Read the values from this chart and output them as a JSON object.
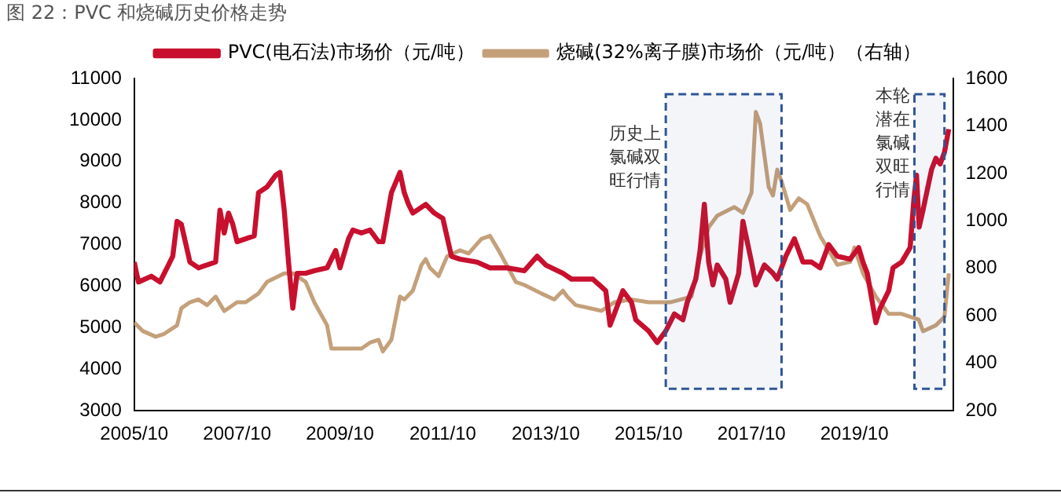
{
  "chart_data": {
    "type": "line",
    "title": "图 22：PVC 和烧碱历史价格走势",
    "xlim": [
      "2005-10",
      "2021-09"
    ],
    "xticks": [
      {
        "value": "2005-10",
        "label": "2005/10"
      },
      {
        "value": "2007-10",
        "label": "2007/10"
      },
      {
        "value": "2009-10",
        "label": "2009/10"
      },
      {
        "value": "2011-10",
        "label": "2011/10"
      },
      {
        "value": "2013-10",
        "label": "2013/10"
      },
      {
        "value": "2015-10",
        "label": "2015/10"
      },
      {
        "value": "2017-10",
        "label": "2017/10"
      },
      {
        "value": "2019-10",
        "label": "2019/10"
      }
    ],
    "ylim": [
      3000,
      11000
    ],
    "yticks": [
      3000,
      4000,
      5000,
      6000,
      7000,
      8000,
      9000,
      10000,
      11000
    ],
    "y2lim": [
      200,
      1600
    ],
    "y2ticks": [
      200,
      400,
      600,
      800,
      1000,
      1200,
      1400,
      1600
    ],
    "grid": false,
    "legend": "top",
    "marker": "none",
    "line_style": "solid",
    "bands": [
      {
        "axis": "x",
        "from": "2016-02",
        "to": "2018-05",
        "label": "历史上氯碱双旺行情",
        "color": "#2f5597"
      },
      {
        "axis": "x",
        "from": "2020-12",
        "to": "2021-07",
        "label": "本轮潜在氯碱双旺行情",
        "color": "#2f5597"
      }
    ],
    "series": [
      {
        "name": "PVC(电石法)市场价（元/吨）",
        "color": "#c8102e",
        "x": [
          "2005-10",
          "2005-11",
          "2006-02",
          "2006-04",
          "2006-06",
          "2006-07",
          "2006-08",
          "2006-09",
          "2006-11",
          "2007-01",
          "2007-03",
          "2007-05",
          "2007-06",
          "2007-07",
          "2007-08",
          "2007-09",
          "2007-10",
          "2008-02",
          "2008-03",
          "2008-05",
          "2008-07",
          "2008-08",
          "2008-09",
          "2008-10",
          "2008-11",
          "2008-12",
          "2009-02",
          "2009-04",
          "2009-07",
          "2009-09",
          "2009-10",
          "2009-12",
          "2010-01",
          "2010-03",
          "2010-05",
          "2010-07",
          "2010-08",
          "2010-10",
          "2010-12",
          "2011-01",
          "2011-02",
          "2011-03",
          "2011-06",
          "2011-08",
          "2011-10",
          "2011-12",
          "2012-02",
          "2012-06",
          "2012-09",
          "2013-01",
          "2013-05",
          "2013-08",
          "2013-10",
          "2014-02",
          "2014-04",
          "2014-09",
          "2014-12",
          "2015-01",
          "2015-02",
          "2015-04",
          "2015-06",
          "2015-07",
          "2015-10",
          "2015-12",
          "2016-02",
          "2016-04",
          "2016-06",
          "2016-07",
          "2016-09",
          "2016-10",
          "2016-11",
          "2016-12",
          "2017-01",
          "2017-02",
          "2017-04",
          "2017-05",
          "2017-07",
          "2017-08",
          "2017-10",
          "2017-11",
          "2018-01",
          "2018-03",
          "2018-04",
          "2018-06",
          "2018-08",
          "2018-10",
          "2018-12",
          "2019-02",
          "2019-04",
          "2019-06",
          "2019-09",
          "2019-11",
          "2019-12",
          "2020-01",
          "2020-03",
          "2020-04",
          "2020-06",
          "2020-07",
          "2020-09",
          "2020-11",
          "2020-11-28",
          "2020-12-16",
          "2021-01-04",
          "2021-02",
          "2021-04",
          "2021-05",
          "2021-06",
          "2021-07",
          "2021-08"
        ],
        "values": [
          6580,
          6100,
          6240,
          6100,
          6510,
          6720,
          7560,
          7490,
          6580,
          6440,
          6510,
          6580,
          7830,
          7280,
          7760,
          7490,
          7070,
          7210,
          8250,
          8390,
          8670,
          8740,
          7830,
          6580,
          5470,
          6310,
          6310,
          6370,
          6440,
          6860,
          6440,
          7140,
          7350,
          7280,
          7350,
          7070,
          7070,
          8250,
          8740,
          8250,
          7970,
          7760,
          7970,
          7760,
          7630,
          6720,
          6650,
          6580,
          6440,
          6440,
          6370,
          6720,
          6510,
          6310,
          6170,
          6170,
          5890,
          5060,
          5330,
          5890,
          5610,
          5190,
          4920,
          4640,
          4920,
          5330,
          5190,
          5610,
          6170,
          6860,
          7970,
          6580,
          6030,
          6510,
          6170,
          5610,
          6310,
          7560,
          6580,
          6030,
          6510,
          6310,
          6170,
          6720,
          7140,
          6580,
          6580,
          6440,
          7000,
          6720,
          6650,
          6930,
          6580,
          6310,
          5120,
          5470,
          5890,
          6440,
          6580,
          6930,
          8110,
          8670,
          7420,
          7830,
          8810,
          9080,
          8940,
          9220,
          9780
        ]
      },
      {
        "name": "烧碱(32%离子膜)市场价（元/吨）（右轴）",
        "color": "#c4a07a",
        "axis": "y2",
        "x": [
          "2005-10",
          "2005-12",
          "2006-03",
          "2006-05",
          "2006-08",
          "2006-09",
          "2006-11",
          "2007-01",
          "2007-03",
          "2007-05",
          "2007-07",
          "2007-10",
          "2007-12",
          "2008-03",
          "2008-05",
          "2008-09",
          "2008-11",
          "2009-02",
          "2009-04",
          "2009-07",
          "2009-08",
          "2009-11",
          "2010-03",
          "2010-05",
          "2010-07",
          "2010-08",
          "2010-10",
          "2010-12",
          "2011-01",
          "2011-03",
          "2011-05",
          "2011-06",
          "2011-07",
          "2011-09",
          "2011-11",
          "2012-02",
          "2012-04",
          "2012-07",
          "2012-09",
          "2012-11",
          "2013-03",
          "2013-05",
          "2013-09",
          "2013-12",
          "2014-02",
          "2014-03",
          "2014-05",
          "2014-11",
          "2015-02",
          "2015-06",
          "2015-10",
          "2016-03",
          "2016-08",
          "2016-10",
          "2016-12",
          "2017-02",
          "2017-06",
          "2017-08",
          "2017-10",
          "2017-11",
          "2017-12",
          "2018-02",
          "2018-03",
          "2018-04",
          "2018-05",
          "2018-07",
          "2018-09",
          "2018-11",
          "2019-02",
          "2019-06",
          "2019-09",
          "2019-10",
          "2019-12",
          "2020-03",
          "2020-06",
          "2020-09",
          "2021-01",
          "2021-02",
          "2021-05",
          "2021-07",
          "2021-08"
        ],
        "values": [
          572,
          536,
          512,
          524,
          560,
          632,
          657,
          669,
          645,
          681,
          620,
          657,
          657,
          694,
          743,
          779,
          779,
          743,
          657,
          560,
          462,
          462,
          462,
          487,
          499,
          450,
          499,
          681,
          669,
          706,
          814,
          839,
          802,
          767,
          851,
          876,
          863,
          924,
          937,
          876,
          743,
          730,
          694,
          669,
          706,
          681,
          645,
          621,
          657,
          669,
          657,
          657,
          681,
          851,
          973,
          1022,
          1058,
          1034,
          1119,
          1459,
          1410,
          1143,
          1107,
          1216,
          1167,
          1046,
          1095,
          1070,
          937,
          815,
          827,
          888,
          779,
          681,
          608,
          608,
          584,
          535,
          560,
          596,
          779
        ]
      }
    ]
  }
}
